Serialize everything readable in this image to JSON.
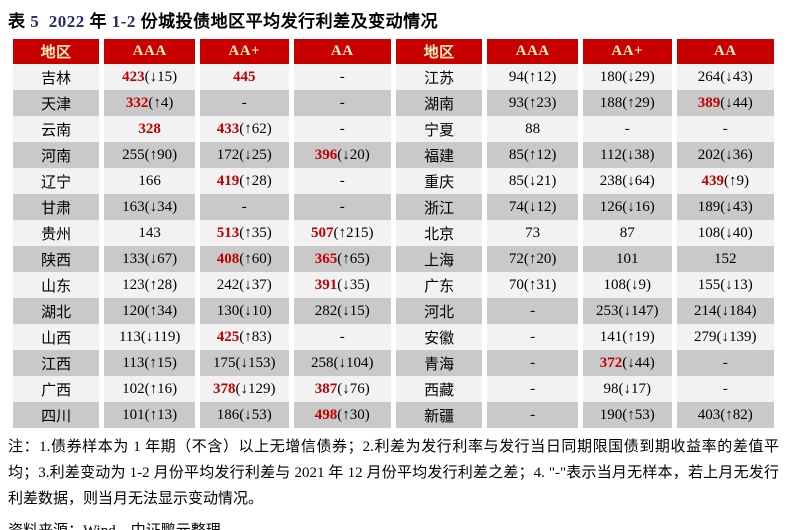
{
  "title": {
    "segments": [
      {
        "text": "表 ",
        "blue": false
      },
      {
        "text": "5",
        "blue": true
      },
      {
        "text": "  ",
        "blue": false
      },
      {
        "text": "2022",
        "blue": true
      },
      {
        "text": " 年 ",
        "blue": false
      },
      {
        "text": "1-2",
        "blue": true
      },
      {
        "text": " 份城投债地区平均发行利差及变动情况",
        "blue": false
      }
    ]
  },
  "columns": [
    "地区",
    "AAA",
    "AA+",
    "AA"
  ],
  "left_rows": [
    {
      "region": "吉林",
      "cells": [
        {
          "v": "423",
          "c": "(↓15)",
          "hl": true
        },
        {
          "v": "445",
          "c": "",
          "hl": true
        },
        {
          "v": "-",
          "c": "",
          "hl": false
        }
      ]
    },
    {
      "region": "天津",
      "cells": [
        {
          "v": "332",
          "c": "(↑4)",
          "hl": true
        },
        {
          "v": "-",
          "c": "",
          "hl": false
        },
        {
          "v": "-",
          "c": "",
          "hl": false
        }
      ]
    },
    {
      "region": "云南",
      "cells": [
        {
          "v": "328",
          "c": "",
          "hl": true
        },
        {
          "v": "433",
          "c": "(↑62)",
          "hl": true
        },
        {
          "v": "-",
          "c": "",
          "hl": false
        }
      ]
    },
    {
      "region": "河南",
      "cells": [
        {
          "v": "255",
          "c": "(↑90)",
          "hl": false
        },
        {
          "v": "172",
          "c": "(↓25)",
          "hl": false
        },
        {
          "v": "396",
          "c": "(↓20)",
          "hl": true
        }
      ]
    },
    {
      "region": "辽宁",
      "cells": [
        {
          "v": "166",
          "c": "",
          "hl": false
        },
        {
          "v": "419",
          "c": "(↑28)",
          "hl": true
        },
        {
          "v": "-",
          "c": "",
          "hl": false
        }
      ]
    },
    {
      "region": "甘肃",
      "cells": [
        {
          "v": "163",
          "c": "(↓34)",
          "hl": false
        },
        {
          "v": "-",
          "c": "",
          "hl": false
        },
        {
          "v": "-",
          "c": "",
          "hl": false
        }
      ]
    },
    {
      "region": "贵州",
      "cells": [
        {
          "v": "143",
          "c": "",
          "hl": false
        },
        {
          "v": "513",
          "c": "(↑35)",
          "hl": true
        },
        {
          "v": "507",
          "c": "(↑215)",
          "hl": true
        }
      ]
    },
    {
      "region": "陕西",
      "cells": [
        {
          "v": "133",
          "c": "(↓67)",
          "hl": false
        },
        {
          "v": "408",
          "c": "(↑60)",
          "hl": true
        },
        {
          "v": "365",
          "c": "(↑65)",
          "hl": true
        }
      ]
    },
    {
      "region": "山东",
      "cells": [
        {
          "v": "123",
          "c": "(↑28)",
          "hl": false
        },
        {
          "v": "242",
          "c": "(↓37)",
          "hl": false
        },
        {
          "v": "391",
          "c": "(↓35)",
          "hl": true
        }
      ]
    },
    {
      "region": "湖北",
      "cells": [
        {
          "v": "120",
          "c": "(↑34)",
          "hl": false
        },
        {
          "v": "130",
          "c": "(↓10)",
          "hl": false
        },
        {
          "v": "282",
          "c": "(↓15)",
          "hl": false
        }
      ]
    },
    {
      "region": "山西",
      "cells": [
        {
          "v": "113",
          "c": "(↓119)",
          "hl": false
        },
        {
          "v": "425",
          "c": "(↑83)",
          "hl": true
        },
        {
          "v": "-",
          "c": "",
          "hl": false
        }
      ]
    },
    {
      "region": "江西",
      "cells": [
        {
          "v": "113",
          "c": "(↑15)",
          "hl": false
        },
        {
          "v": "175",
          "c": "(↓153)",
          "hl": false
        },
        {
          "v": "258",
          "c": "(↓104)",
          "hl": false
        }
      ]
    },
    {
      "region": "广西",
      "cells": [
        {
          "v": "102",
          "c": "(↑16)",
          "hl": false
        },
        {
          "v": "378",
          "c": "(↓129)",
          "hl": true
        },
        {
          "v": "387",
          "c": "(↓76)",
          "hl": true
        }
      ]
    },
    {
      "region": "四川",
      "cells": [
        {
          "v": "101",
          "c": "(↑13)",
          "hl": false
        },
        {
          "v": "186",
          "c": "(↓53)",
          "hl": false
        },
        {
          "v": "498",
          "c": "(↑30)",
          "hl": true
        }
      ]
    }
  ],
  "right_rows": [
    {
      "region": "江苏",
      "cells": [
        {
          "v": "94",
          "c": "(↑12)",
          "hl": false
        },
        {
          "v": "180",
          "c": "(↓29)",
          "hl": false
        },
        {
          "v": "264",
          "c": "(↓43)",
          "hl": false
        }
      ]
    },
    {
      "region": "湖南",
      "cells": [
        {
          "v": "93",
          "c": "(↑23)",
          "hl": false
        },
        {
          "v": "188",
          "c": "(↑29)",
          "hl": false
        },
        {
          "v": "389",
          "c": "(↓44)",
          "hl": true
        }
      ]
    },
    {
      "region": "宁夏",
      "cells": [
        {
          "v": "88",
          "c": "",
          "hl": false
        },
        {
          "v": "-",
          "c": "",
          "hl": false
        },
        {
          "v": "-",
          "c": "",
          "hl": false
        }
      ]
    },
    {
      "region": "福建",
      "cells": [
        {
          "v": "85",
          "c": "(↑12)",
          "hl": false
        },
        {
          "v": "112",
          "c": "(↓38)",
          "hl": false
        },
        {
          "v": "202",
          "c": "(↓36)",
          "hl": false
        }
      ]
    },
    {
      "region": "重庆",
      "cells": [
        {
          "v": "85",
          "c": "(↓21)",
          "hl": false
        },
        {
          "v": "238",
          "c": "(↓64)",
          "hl": false
        },
        {
          "v": "439",
          "c": "(↑9)",
          "hl": true
        }
      ]
    },
    {
      "region": "浙江",
      "cells": [
        {
          "v": "74",
          "c": "(↓12)",
          "hl": false
        },
        {
          "v": "126",
          "c": "(↓16)",
          "hl": false
        },
        {
          "v": "189",
          "c": "(↓43)",
          "hl": false
        }
      ]
    },
    {
      "region": "北京",
      "cells": [
        {
          "v": "73",
          "c": "",
          "hl": false
        },
        {
          "v": "87",
          "c": "",
          "hl": false
        },
        {
          "v": "108",
          "c": "(↓40)",
          "hl": false
        }
      ]
    },
    {
      "region": "上海",
      "cells": [
        {
          "v": "72",
          "c": "(↑20)",
          "hl": false
        },
        {
          "v": "101",
          "c": "",
          "hl": false
        },
        {
          "v": "152",
          "c": "",
          "hl": false
        }
      ]
    },
    {
      "region": "广东",
      "cells": [
        {
          "v": "70",
          "c": "(↑31)",
          "hl": false
        },
        {
          "v": "108",
          "c": "(↓9)",
          "hl": false
        },
        {
          "v": "155",
          "c": "(↓13)",
          "hl": false
        }
      ]
    },
    {
      "region": "河北",
      "cells": [
        {
          "v": "-",
          "c": "",
          "hl": false
        },
        {
          "v": "253",
          "c": "(↓147)",
          "hl": false
        },
        {
          "v": "214",
          "c": "(↓184)",
          "hl": false
        }
      ]
    },
    {
      "region": "安徽",
      "cells": [
        {
          "v": "-",
          "c": "",
          "hl": false
        },
        {
          "v": "141",
          "c": "(↑19)",
          "hl": false
        },
        {
          "v": "279",
          "c": "(↓139)",
          "hl": false
        }
      ]
    },
    {
      "region": "青海",
      "cells": [
        {
          "v": "-",
          "c": "",
          "hl": false
        },
        {
          "v": "372",
          "c": "(↓44)",
          "hl": true
        },
        {
          "v": "-",
          "c": "",
          "hl": false
        }
      ]
    },
    {
      "region": "西藏",
      "cells": [
        {
          "v": "-",
          "c": "",
          "hl": false
        },
        {
          "v": "98",
          "c": "(↓17)",
          "hl": false
        },
        {
          "v": "-",
          "c": "",
          "hl": false
        }
      ]
    },
    {
      "region": "新疆",
      "cells": [
        {
          "v": "-",
          "c": "",
          "hl": false
        },
        {
          "v": "190",
          "c": "(↑53)",
          "hl": false
        },
        {
          "v": "403",
          "c": "(↑82)",
          "hl": false
        }
      ]
    }
  ],
  "notes": "注：1.债券样本为 1 年期（不含）以上无增信债券；2.利差为发行利率与发行当日同期限国债到期收益率的差值平均；3.利差变动为 1-2 月份平均发行利差与 2021 年 12 月份平均发行利差之差；4. \"-\"表示当月无样本，若上月无发行利差数据，则当月无法显示变动情况。",
  "source": "资料来源：Wind，中证鹏元整理",
  "colors": {
    "header_bg": "#C80000",
    "header_text": "#FFF1C0",
    "highlight": "#C00000",
    "row_light": "#F2F2F2",
    "row_dark": "#C9C9C9",
    "title_number": "#262D6B"
  }
}
